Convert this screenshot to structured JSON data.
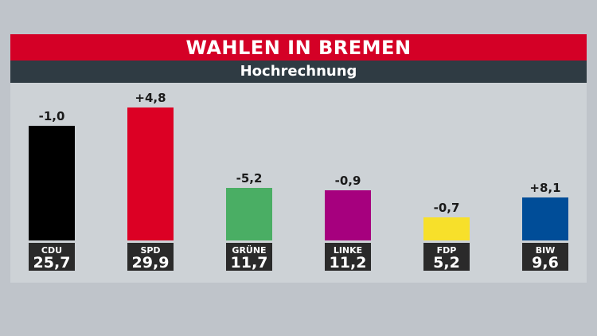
{
  "chart_data": {
    "type": "bar",
    "title": "WAHLEN IN BREMEN",
    "subtitle": "Hochrechnung",
    "categories": [
      "CDU",
      "SPD",
      "GRÜNE",
      "LINKE",
      "FDP",
      "BIW"
    ],
    "values": [
      25.7,
      29.9,
      11.7,
      11.2,
      5.2,
      9.6
    ],
    "value_labels": [
      "25,7",
      "29,9",
      "11,7",
      "11,2",
      "5,2",
      "9,6"
    ],
    "changes": [
      -1.0,
      4.8,
      -5.2,
      -0.9,
      -0.7,
      8.1
    ],
    "change_labels": [
      "-1,0",
      "+4,8",
      "-5,2",
      "-0,9",
      "-0,7",
      "+8,1"
    ],
    "colors": [
      "#000000",
      "#dc0024",
      "#4aae64",
      "#a6007e",
      "#f7e02a",
      "#004d98"
    ],
    "unit": "%"
  }
}
